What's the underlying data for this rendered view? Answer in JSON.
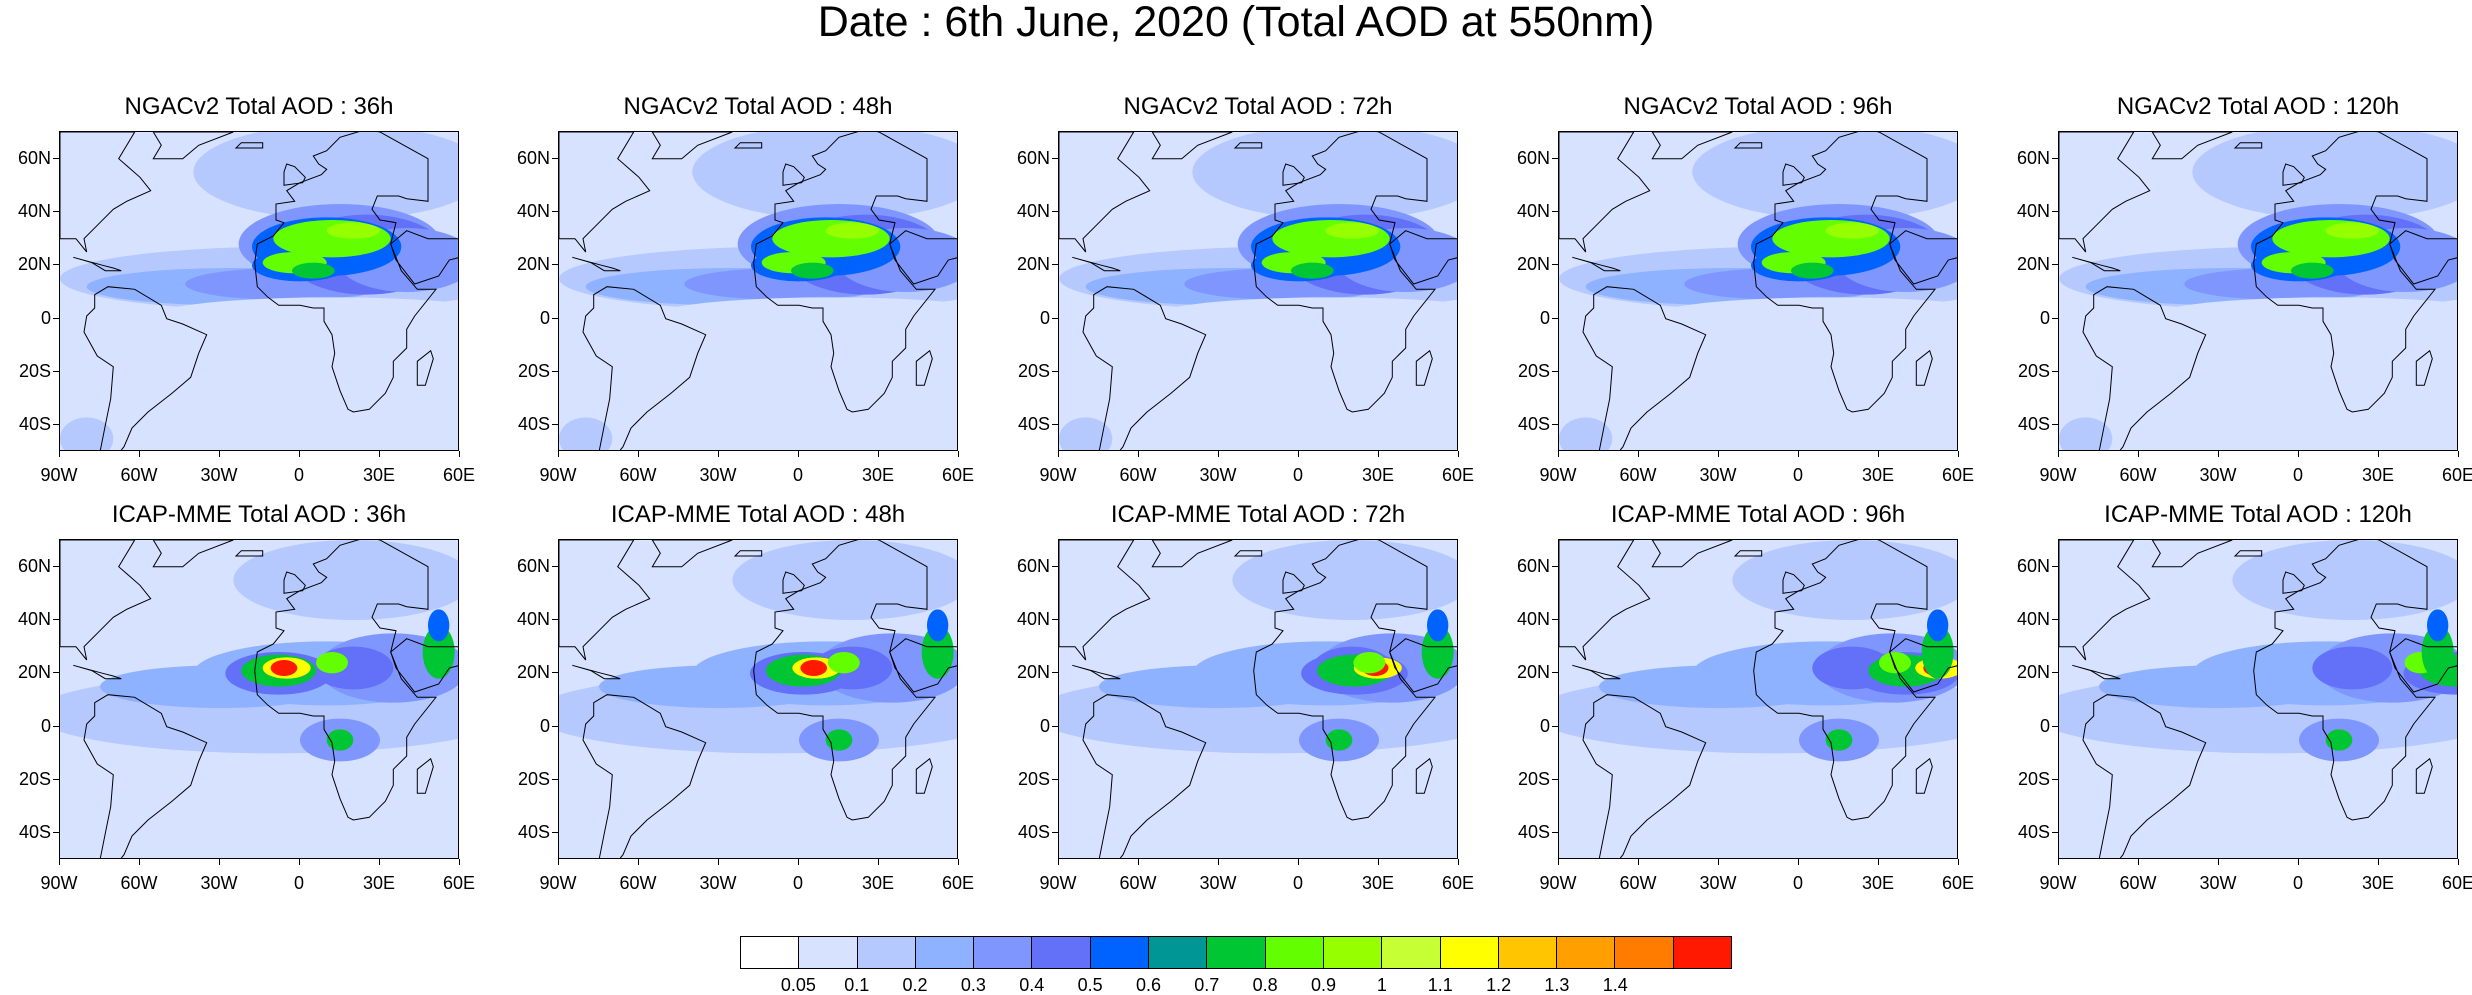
{
  "title": "Date : 6th June, 2020 (Total AOD at 550nm)",
  "rows": [
    {
      "model": "NGACv2",
      "panels": [
        {
          "title": "NGACv2 Total AOD : 36h",
          "lead_hours": 36
        },
        {
          "title": "NGACv2 Total AOD : 48h",
          "lead_hours": 48
        },
        {
          "title": "NGACv2 Total AOD : 72h",
          "lead_hours": 72
        },
        {
          "title": "NGACv2 Total AOD : 96h",
          "lead_hours": 96
        },
        {
          "title": "NGACv2 Total AOD : 120h",
          "lead_hours": 120
        }
      ]
    },
    {
      "model": "ICAP-MME",
      "panels": [
        {
          "title": "ICAP-MME Total AOD : 36h",
          "lead_hours": 36
        },
        {
          "title": "ICAP-MME Total AOD : 48h",
          "lead_hours": 48
        },
        {
          "title": "ICAP-MME Total AOD : 72h",
          "lead_hours": 72
        },
        {
          "title": "ICAP-MME Total AOD : 96h",
          "lead_hours": 96
        },
        {
          "title": "ICAP-MME Total AOD : 120h",
          "lead_hours": 120
        }
      ]
    }
  ],
  "axes": {
    "lon_range": [
      -90,
      60
    ],
    "lat_range": [
      -50,
      70
    ],
    "x_ticks": [
      {
        "value": -90,
        "label": "90W"
      },
      {
        "value": -60,
        "label": "60W"
      },
      {
        "value": -30,
        "label": "30W"
      },
      {
        "value": 0,
        "label": "0"
      },
      {
        "value": 30,
        "label": "30E"
      },
      {
        "value": 60,
        "label": "60E"
      }
    ],
    "y_ticks": [
      {
        "value": 60,
        "label": "60N"
      },
      {
        "value": 40,
        "label": "40N"
      },
      {
        "value": 20,
        "label": "20N"
      },
      {
        "value": 0,
        "label": "0"
      },
      {
        "value": -20,
        "label": "20S"
      },
      {
        "value": -40,
        "label": "40S"
      }
    ]
  },
  "colorbar": {
    "colors": [
      "#ffffff",
      "#d6e2ff",
      "#b5c9ff",
      "#8eb2ff",
      "#7f96ff",
      "#6370f8",
      "#0063ff",
      "#009696",
      "#00c633",
      "#63ff00",
      "#96ff00",
      "#c6ff33",
      "#ffff00",
      "#ffc600",
      "#ffa000",
      "#ff7c00",
      "#ff1900"
    ],
    "labels": [
      "0.05",
      "0.1",
      "0.2",
      "0.3",
      "0.4",
      "0.5",
      "0.6",
      "0.7",
      "0.8",
      "0.9",
      "1",
      "1.1",
      "1.2",
      "1.3",
      "1.4"
    ]
  }
}
